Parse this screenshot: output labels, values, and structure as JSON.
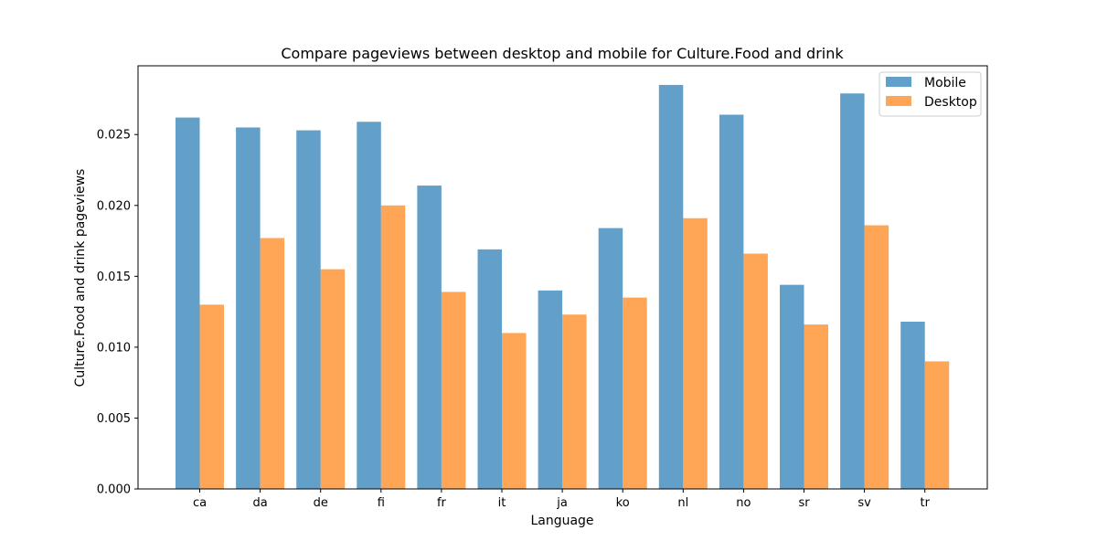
{
  "chart_data": {
    "type": "bar",
    "title": "Compare pageviews between desktop and mobile for Culture.Food and drink",
    "xlabel": "Language",
    "ylabel": "Culture.Food and drink pageviews",
    "categories": [
      "ca",
      "da",
      "de",
      "fi",
      "fr",
      "it",
      "ja",
      "ko",
      "nl",
      "no",
      "sr",
      "sv",
      "tr"
    ],
    "series": [
      {
        "name": "Mobile",
        "color": "#1f77b4",
        "values": [
          0.0262,
          0.0255,
          0.0253,
          0.0259,
          0.0214,
          0.0169,
          0.014,
          0.0184,
          0.0285,
          0.0264,
          0.0144,
          0.0279,
          0.0118
        ]
      },
      {
        "name": "Desktop",
        "color": "#ff7f0e",
        "values": [
          0.013,
          0.0177,
          0.0155,
          0.02,
          0.0139,
          0.011,
          0.0123,
          0.0135,
          0.0191,
          0.0166,
          0.0116,
          0.0186,
          0.009
        ]
      }
    ],
    "yticks": [
      "0.000",
      "0.005",
      "0.010",
      "0.015",
      "0.020",
      "0.025"
    ],
    "ytick_values": [
      0,
      0.005,
      0.01,
      0.015,
      0.02,
      0.025
    ],
    "ylim": [
      0,
      0.02985
    ],
    "bar_opacity": 0.7,
    "legend_position": "top-right",
    "grid": false
  }
}
